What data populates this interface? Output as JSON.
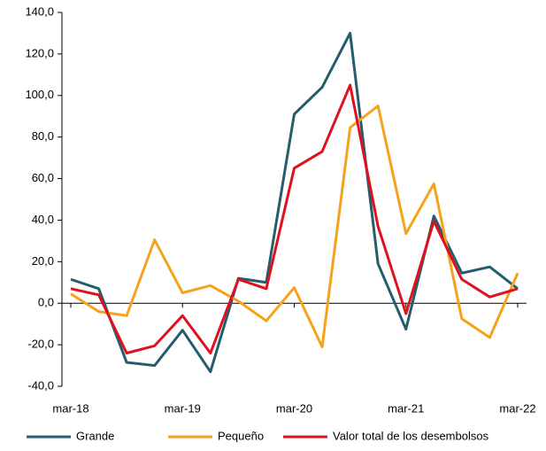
{
  "chart_data": {
    "type": "line",
    "categories": [
      "mar-18",
      null,
      null,
      null,
      "mar-19",
      null,
      null,
      null,
      "mar-20",
      null,
      null,
      null,
      "mar-21",
      null,
      null,
      null,
      "mar-22"
    ],
    "series": [
      {
        "name": "Grande",
        "color": "#235d6e",
        "values": [
          11.5,
          7,
          -28.5,
          -30,
          -13,
          -33,
          12,
          10,
          91,
          104,
          130,
          19,
          -12.5,
          42,
          14.5,
          17.5,
          7
        ]
      },
      {
        "name": "Pequeño",
        "color": "#f5a21c",
        "values": [
          4.5,
          -4,
          -6,
          30.5,
          5,
          8.5,
          1,
          -8.5,
          7.5,
          -21,
          84.5,
          95,
          33.5,
          57.5,
          -7.5,
          -16.5,
          14.5
        ]
      },
      {
        "name": "Valor total de los desembolsos",
        "color": "#e0111e",
        "values": [
          7,
          4,
          -24,
          -20.5,
          -6,
          -24,
          11.5,
          7,
          65,
          73,
          105,
          37,
          -5,
          39.5,
          11.5,
          3,
          7
        ]
      }
    ],
    "ylim": [
      -40,
      140
    ],
    "yticks": [
      {
        "value": -40,
        "label": "-40,0"
      },
      {
        "value": -20,
        "label": "-20,0"
      },
      {
        "value": 0,
        "label": "0,0"
      },
      {
        "value": 20,
        "label": "20,0"
      },
      {
        "value": 40,
        "label": "40,0"
      },
      {
        "value": 60,
        "label": "60,0"
      },
      {
        "value": 80,
        "label": "80,0"
      },
      {
        "value": 100,
        "label": "100,0"
      },
      {
        "value": 120,
        "label": "120,0"
      },
      {
        "value": 140,
        "label": "140,0"
      }
    ],
    "legend": "bottom"
  }
}
